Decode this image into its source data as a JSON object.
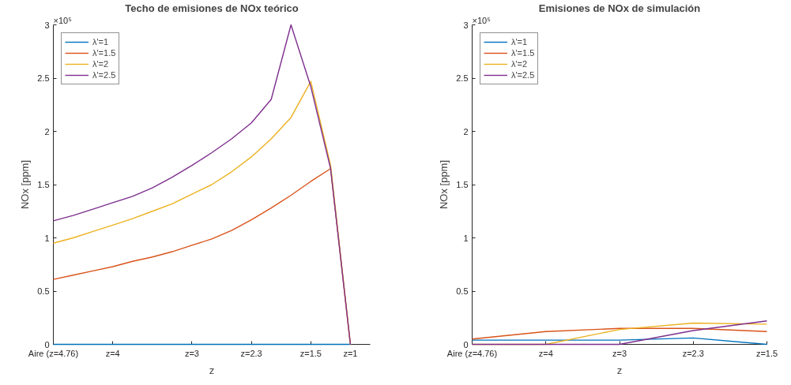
{
  "chart_data": [
    {
      "type": "line",
      "title": "Techo de emisiones de NOx teórico",
      "xlabel": "z",
      "ylabel": "NOx [ppm]",
      "annotations": [
        "×10⁵"
      ],
      "legend": "top left",
      "categories": [
        "Aire (z=4.76)",
        null,
        null,
        "z=4",
        null,
        null,
        null,
        "z=3",
        null,
        null,
        "z=2.3",
        null,
        null,
        "z=1.5",
        null,
        "z=1"
      ],
      "ylim": [
        0,
        3
      ],
      "yticks": [
        0,
        0.5,
        1,
        1.5,
        2,
        2.5,
        3
      ],
      "series": [
        {
          "name": "λ'=1",
          "color": "#0072bd",
          "values": [
            0,
            0,
            0,
            0,
            0,
            0,
            0,
            0,
            0,
            0,
            0,
            0,
            0,
            0,
            0,
            0
          ]
        },
        {
          "name": "λ'=1.5",
          "color": "#d95319",
          "values": [
            0.61,
            0.65,
            0.69,
            0.73,
            0.78,
            0.82,
            0.87,
            0.93,
            0.99,
            1.07,
            1.17,
            1.28,
            1.4,
            1.53,
            1.65,
            0
          ]
        },
        {
          "name": "λ'=2",
          "color": "#edb120",
          "values": [
            0.95,
            1.0,
            1.06,
            1.12,
            1.18,
            1.25,
            1.32,
            1.41,
            1.5,
            1.62,
            1.76,
            1.93,
            2.13,
            2.47,
            1.68,
            0
          ]
        },
        {
          "name": "λ'=2.5",
          "color": "#7e2f8e",
          "values": [
            1.16,
            1.21,
            1.27,
            1.33,
            1.39,
            1.47,
            1.57,
            1.68,
            1.8,
            1.93,
            2.08,
            2.3,
            3.0,
            2.42,
            1.65,
            0
          ]
        }
      ]
    },
    {
      "type": "line",
      "title": "Emisiones de NOx de simulación",
      "xlabel": "z",
      "ylabel": "NOx [ppm]",
      "annotations": [
        "×10⁵"
      ],
      "legend": "top left",
      "categories": [
        "Aire (z=4.76)",
        "z=4",
        "z=3",
        "z=2.3",
        "z=1.5"
      ],
      "ylim": [
        0,
        3
      ],
      "yticks": [
        0,
        0.5,
        1,
        1.5,
        2,
        2.5,
        3
      ],
      "series": [
        {
          "name": "λ'=1",
          "color": "#0072bd",
          "values": [
            0.04,
            0.04,
            0.04,
            0.06,
            0
          ]
        },
        {
          "name": "λ'=1.5",
          "color": "#d95319",
          "values": [
            0.05,
            0.12,
            0.15,
            0.15,
            0.12
          ]
        },
        {
          "name": "λ'=2",
          "color": "#edb120",
          "values": [
            0,
            0,
            0.14,
            0.2,
            0.19
          ]
        },
        {
          "name": "λ'=2.5",
          "color": "#7e2f8e",
          "values": [
            0,
            0,
            0,
            0.13,
            0.22
          ]
        }
      ]
    }
  ]
}
